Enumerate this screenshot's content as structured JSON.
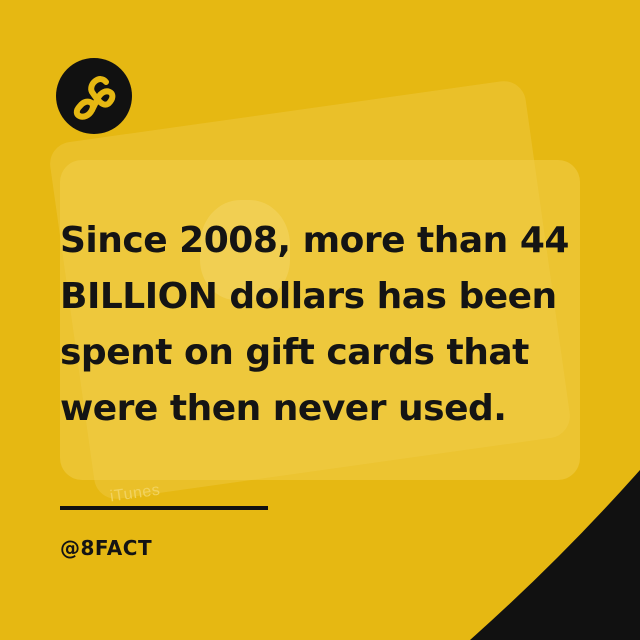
{
  "brand": {
    "logo_icon": "infinity-eight-logo",
    "handle": "@8FACT"
  },
  "fact": {
    "lines": [
      "Since 2008, more than 44",
      "BILLION dollars has been",
      "spent on gift cards that",
      "were then never used."
    ]
  },
  "background": {
    "card_label": "iTunes",
    "card_icon": "apple-icon"
  },
  "colors": {
    "background": "#e6b812",
    "text": "#141414",
    "accent": "#111111"
  }
}
